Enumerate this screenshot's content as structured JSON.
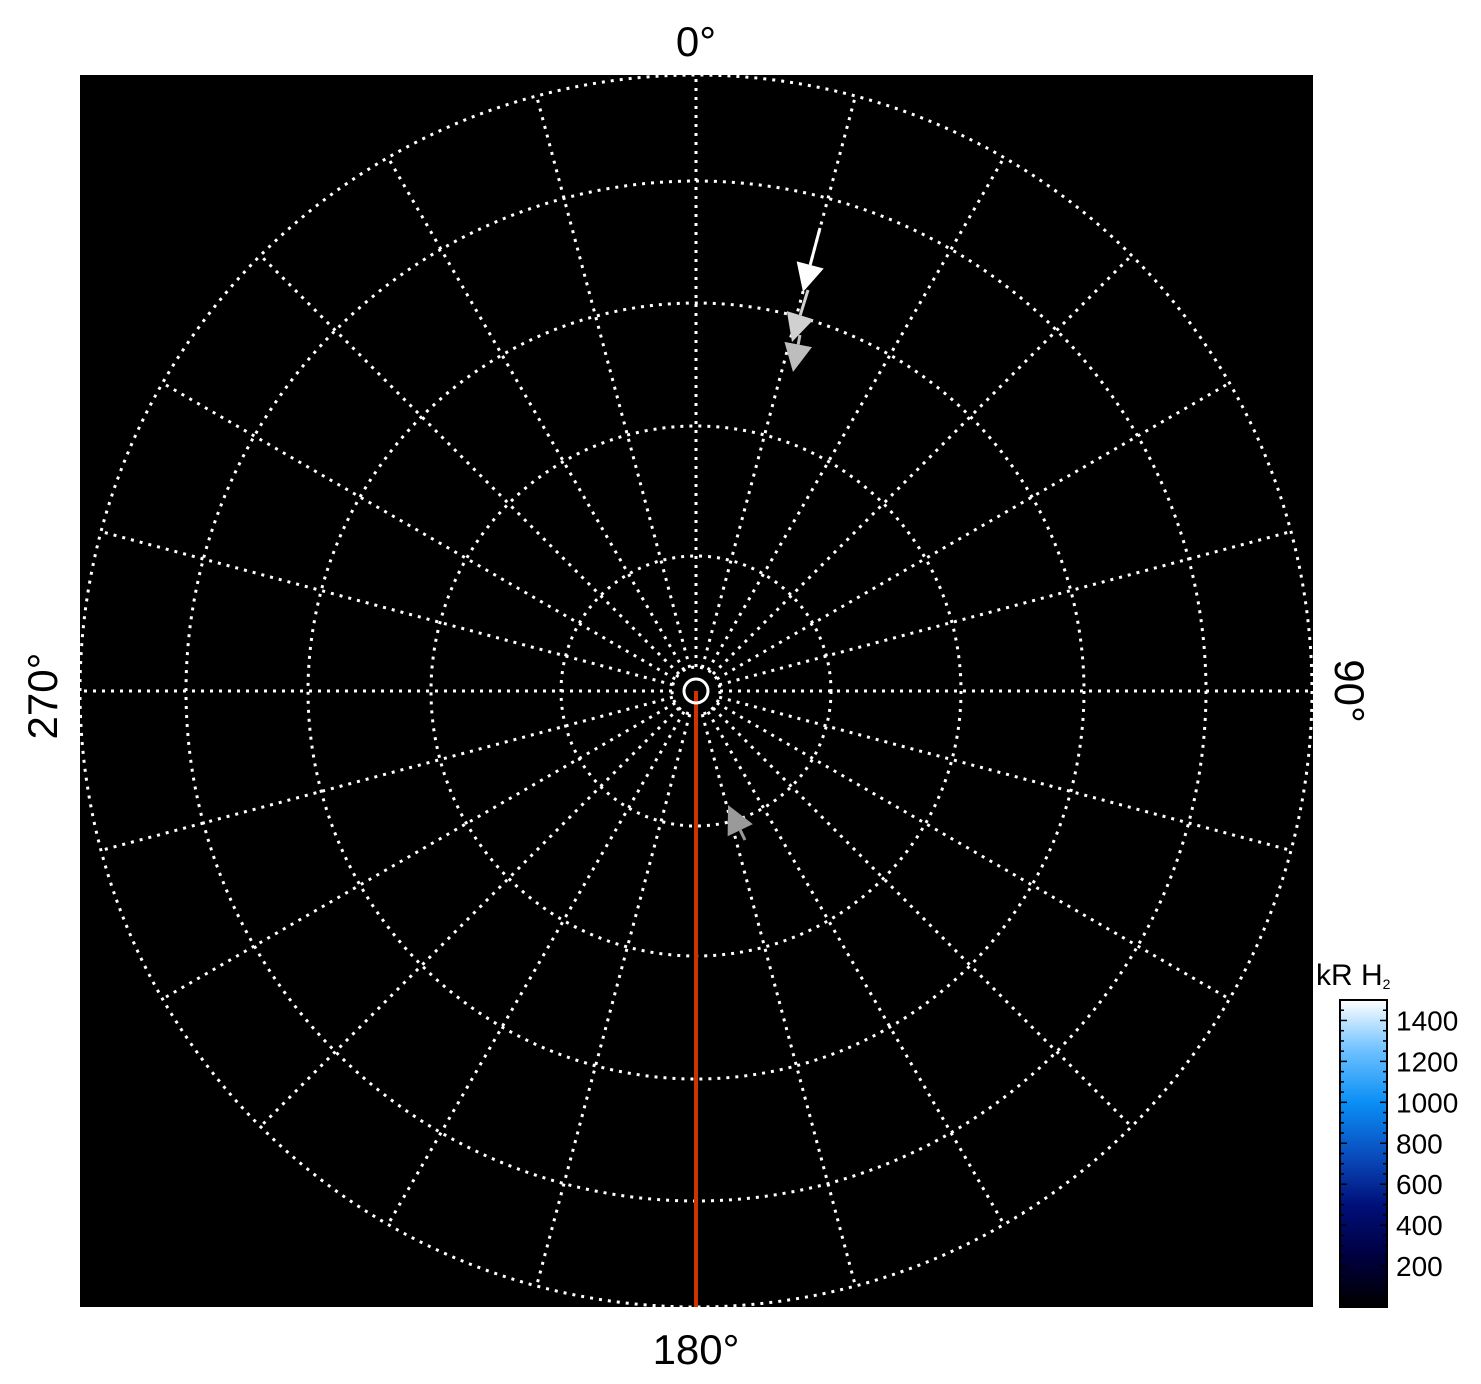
{
  "chart_data": {
    "type": "polar",
    "projection": "polar map",
    "angle_labels": {
      "top": "0°",
      "right": "90°",
      "bottom": "180°",
      "left": "270°"
    },
    "radial_gridlines_every_deg": 15,
    "latitude_circles": 5,
    "grid": true,
    "background_color": "#000000",
    "grid_color": "#ffffff",
    "meridian_line": {
      "angle_deg": 180,
      "color": "#cc3300"
    },
    "colorbar": {
      "label_main": "kR H",
      "label_sub": "2",
      "ticks": [
        "200",
        "400",
        "600",
        "800",
        "1000",
        "1200",
        "1400"
      ],
      "tick_values": [
        200,
        400,
        600,
        800,
        1000,
        1200,
        1400
      ],
      "range": [
        0,
        1500
      ],
      "colormap": [
        "#000000",
        "#000040",
        "#00107a",
        "#0a4fc0",
        "#0a8ff5",
        "#6cc0ff",
        "#ffffff"
      ],
      "placement": "bottom-right"
    }
  }
}
